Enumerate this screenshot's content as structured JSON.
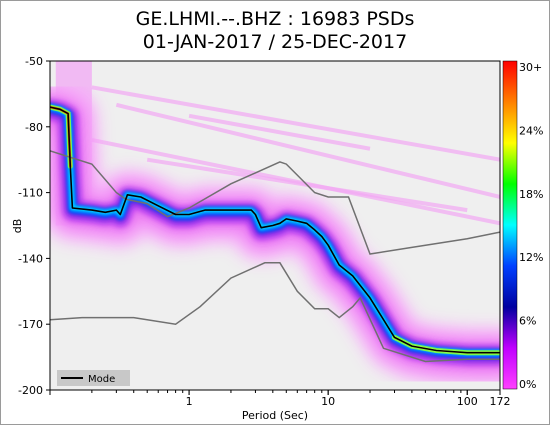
{
  "chart_data": {
    "type": "heatmap",
    "title": "GE.LHMI.--.BHZ : 16983 PSDs",
    "subtitle": "01-JAN-2017 / 25-DEC-2017",
    "xlabel": "Period (Sec)",
    "ylabel": "dB",
    "x_scale": "log",
    "xlim": [
      0.1,
      172
    ],
    "ylim": [
      -200,
      -50
    ],
    "x_ticks": [
      {
        "value": 1,
        "label": "1"
      },
      {
        "value": 10,
        "label": "10"
      },
      {
        "value": 100,
        "label": "100"
      },
      {
        "value": 172,
        "label": "172"
      }
    ],
    "y_ticks": [
      {
        "value": -50,
        "label": "-50"
      },
      {
        "value": -80,
        "label": "-80"
      },
      {
        "value": -110,
        "label": "-110"
      },
      {
        "value": -140,
        "label": "-140"
      },
      {
        "value": -170,
        "label": "-170"
      },
      {
        "value": -200,
        "label": "-200"
      }
    ],
    "colorbar": {
      "labels": [
        "30+",
        "24%",
        "18%",
        "12%",
        "6%",
        "0%"
      ],
      "colors": [
        "#ff0000",
        "#ff8000",
        "#ffff00",
        "#00ff00",
        "#00ffff",
        "#0040ff",
        "#0000a0",
        "#c000ff",
        "#ff40ff"
      ]
    },
    "legend": {
      "placement": "bottom-left",
      "entries": [
        "Mode"
      ]
    },
    "series": [
      {
        "name": "Mode",
        "color": "#000000",
        "x": [
          0.1,
          0.118,
          0.135,
          0.14,
          0.145,
          0.2,
          0.25,
          0.3,
          0.32,
          0.36,
          0.45,
          0.6,
          0.8,
          1.0,
          1.3,
          2.0,
          2.8,
          3.0,
          3.3,
          4.0,
          4.5,
          5.0,
          6.0,
          7.0,
          8.0,
          9.0,
          10,
          12,
          15,
          20,
          30,
          40,
          60,
          100,
          150,
          172
        ],
        "y": [
          -71,
          -72,
          -74,
          -98,
          -117,
          -118,
          -119,
          -118,
          -120,
          -111,
          -112,
          -116,
          -120,
          -120,
          -118,
          -118,
          -118,
          -120,
          -126,
          -125,
          -124,
          -122,
          -123,
          -124,
          -127,
          -130,
          -134,
          -143,
          -148,
          -158,
          -176,
          -180,
          -182,
          -183,
          -183,
          -183
        ]
      },
      {
        "name": "NHNM",
        "color": "#707070",
        "x": [
          0.1,
          0.2,
          0.3,
          0.35,
          0.5,
          0.7,
          1.0,
          2.0,
          3.0,
          4.5,
          5.0,
          6.0,
          8.0,
          10,
          14,
          20,
          40,
          100,
          172
        ],
        "y": [
          -91,
          -97,
          -110,
          -113,
          -115,
          -121,
          -117,
          -106,
          -101,
          -96,
          -97,
          -102,
          -110,
          -112,
          -112,
          -138,
          -135,
          -131,
          -128
        ]
      },
      {
        "name": "NLNM",
        "color": "#707070",
        "x": [
          0.1,
          0.17,
          0.4,
          0.8,
          1.2,
          2.0,
          3.5,
          4.5,
          6.0,
          8.0,
          10,
          12,
          15,
          17,
          25,
          50,
          100,
          172
        ],
        "y": [
          -168,
          -167,
          -167,
          -170,
          -162,
          -149,
          -142,
          -142,
          -155,
          -163,
          -163,
          -167,
          -162,
          -158,
          -181,
          -187,
          -186,
          -186
        ]
      }
    ]
  }
}
